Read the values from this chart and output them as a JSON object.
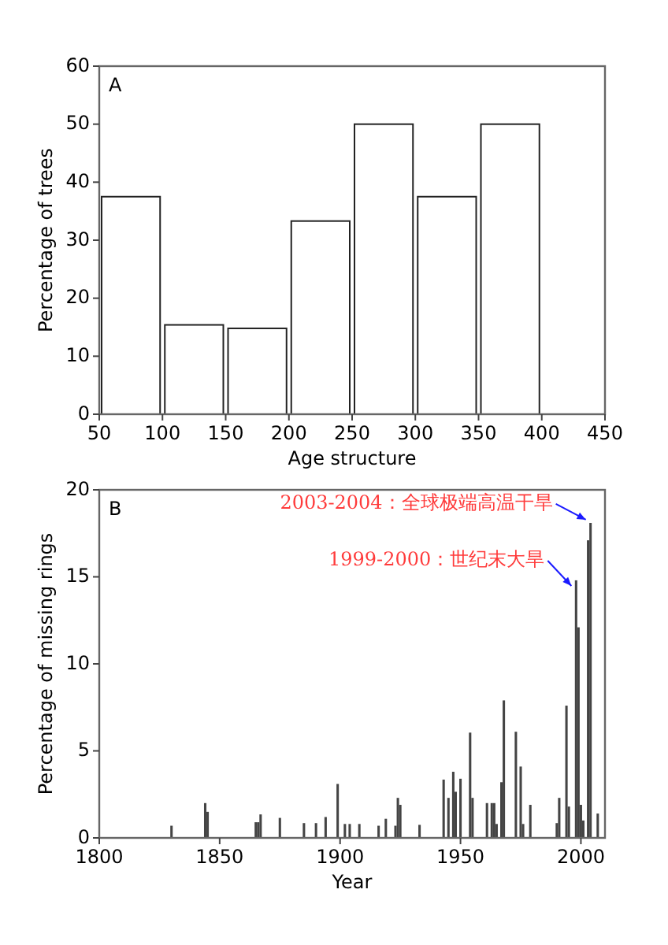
{
  "chart_data": [
    {
      "type": "histogram",
      "title": "A",
      "xlabel": "Age structure",
      "ylabel": "Percentage of trees",
      "bins": [
        50,
        100,
        150,
        200,
        250,
        300,
        350,
        400
      ],
      "values": [
        37.5,
        15.4,
        14.8,
        33.3,
        50,
        37.5,
        50
      ],
      "color": "#ffffff",
      "xlim": [
        50,
        450
      ],
      "xticks": [
        50,
        100,
        150,
        200,
        250,
        300,
        350,
        400,
        450
      ],
      "ylim": [
        0,
        60
      ],
      "yticks": [
        0,
        10,
        20,
        30,
        40,
        50,
        60
      ]
    },
    {
      "type": "bar",
      "title": "B",
      "xlabel": "Year",
      "ylabel": "Percentage of missing rings",
      "color": "#444444",
      "x": [
        1830,
        1844,
        1845,
        1865,
        1866,
        1867,
        1875,
        1885,
        1890,
        1894,
        1899,
        1902,
        1904,
        1908,
        1916,
        1919,
        1923,
        1924,
        1925,
        1933,
        1943,
        1945,
        1947,
        1948,
        1950,
        1954,
        1955,
        1961,
        1963,
        1964,
        1965,
        1967,
        1968,
        1973,
        1975,
        1976,
        1979,
        1990,
        1991,
        1994,
        1995,
        1998,
        1999,
        2000,
        2001,
        2003,
        2004,
        2007
      ],
      "values": [
        0.7,
        2.0,
        1.5,
        0.9,
        0.9,
        1.35,
        1.15,
        0.85,
        0.85,
        1.2,
        3.1,
        0.8,
        0.8,
        0.8,
        0.7,
        1.1,
        0.7,
        2.3,
        1.9,
        0.75,
        3.35,
        2.3,
        3.8,
        2.65,
        3.4,
        6.05,
        2.3,
        2.0,
        2.0,
        2.0,
        0.8,
        3.2,
        7.9,
        6.1,
        4.1,
        0.8,
        1.9,
        0.85,
        2.3,
        7.6,
        1.8,
        14.8,
        12.1,
        1.9,
        1.0,
        17.1,
        18.1,
        1.4
      ],
      "xlim": [
        1800,
        2010
      ],
      "xticks": [
        1800,
        1850,
        1900,
        1950,
        2000
      ],
      "ylim": [
        0,
        20
      ],
      "yticks": [
        0,
        5,
        10,
        15,
        20
      ],
      "annotations": [
        {
          "text": "2003-2004：全球极端高温干旱",
          "x": 2004,
          "y": 18.1
        },
        {
          "text": "1999-2000：世纪末大旱",
          "x": 1998,
          "y": 14.3
        }
      ]
    }
  ]
}
